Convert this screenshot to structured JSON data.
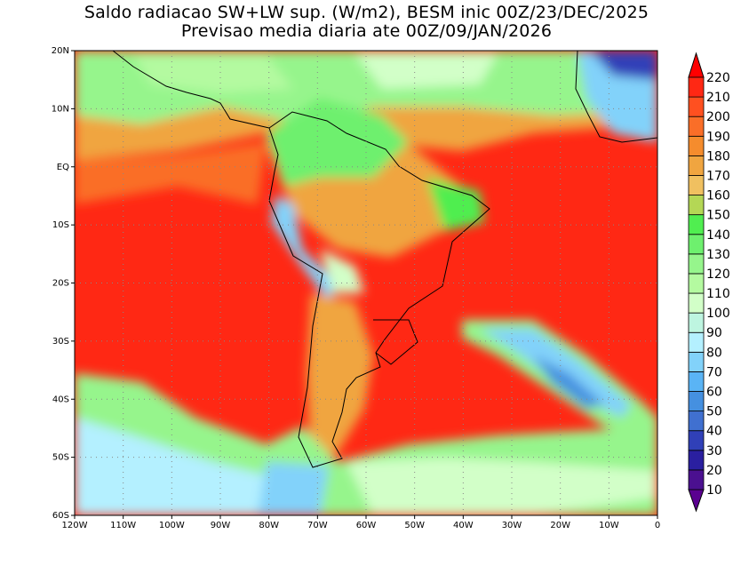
{
  "title": {
    "line1": "Saldo radiacao SW+LW sup. (W/m2), BESM inic 00Z/23/DEC/2025",
    "line2": "Previsao media diaria ate 00Z/09/JAN/2026"
  },
  "map": {
    "lon_range": [
      -120,
      0
    ],
    "lat_range": [
      -60,
      20
    ],
    "lat_labels": [
      {
        "lat": 20,
        "text": "20N"
      },
      {
        "lat": 10,
        "text": "10N"
      },
      {
        "lat": 0,
        "text": "EQ"
      },
      {
        "lat": -10,
        "text": "10S"
      },
      {
        "lat": -20,
        "text": "20S"
      },
      {
        "lat": -30,
        "text": "30S"
      },
      {
        "lat": -40,
        "text": "40S"
      },
      {
        "lat": -50,
        "text": "50S"
      },
      {
        "lat": -60,
        "text": "60S"
      }
    ],
    "lon_labels": [
      {
        "lon": -120,
        "text": "120W"
      },
      {
        "lon": -110,
        "text": "110W"
      },
      {
        "lon": -100,
        "text": "100W"
      },
      {
        "lon": -90,
        "text": "90W"
      },
      {
        "lon": -80,
        "text": "80W"
      },
      {
        "lon": -70,
        "text": "70W"
      },
      {
        "lon": -60,
        "text": "60W"
      },
      {
        "lon": -50,
        "text": "50W"
      },
      {
        "lon": -40,
        "text": "40W"
      },
      {
        "lon": -30,
        "text": "30W"
      },
      {
        "lon": -20,
        "text": "20W"
      },
      {
        "lon": -10,
        "text": "10W"
      },
      {
        "lon": 0,
        "text": "0"
      }
    ]
  },
  "colorbar": {
    "labels": [
      "10",
      "20",
      "30",
      "40",
      "50",
      "60",
      "70",
      "80",
      "90",
      "100",
      "110",
      "120",
      "130",
      "140",
      "150",
      "160",
      "170",
      "180",
      "190",
      "200",
      "210",
      "220"
    ],
    "below_color": "#5a0090",
    "above_color": "#ff0000",
    "colors": [
      "#4b1090",
      "#2a1fa0",
      "#3040b8",
      "#4070d0",
      "#4590e0",
      "#5ab4f5",
      "#82d2fa",
      "#b4f0ff",
      "#bef5e0",
      "#d2ffc8",
      "#b4faa0",
      "#96f58c",
      "#6ef06e",
      "#50ee50",
      "#b4d755",
      "#f0c060",
      "#f0a540",
      "#f58c2d",
      "#fa6e28",
      "#ff5020",
      "#ff2814"
    ]
  }
}
